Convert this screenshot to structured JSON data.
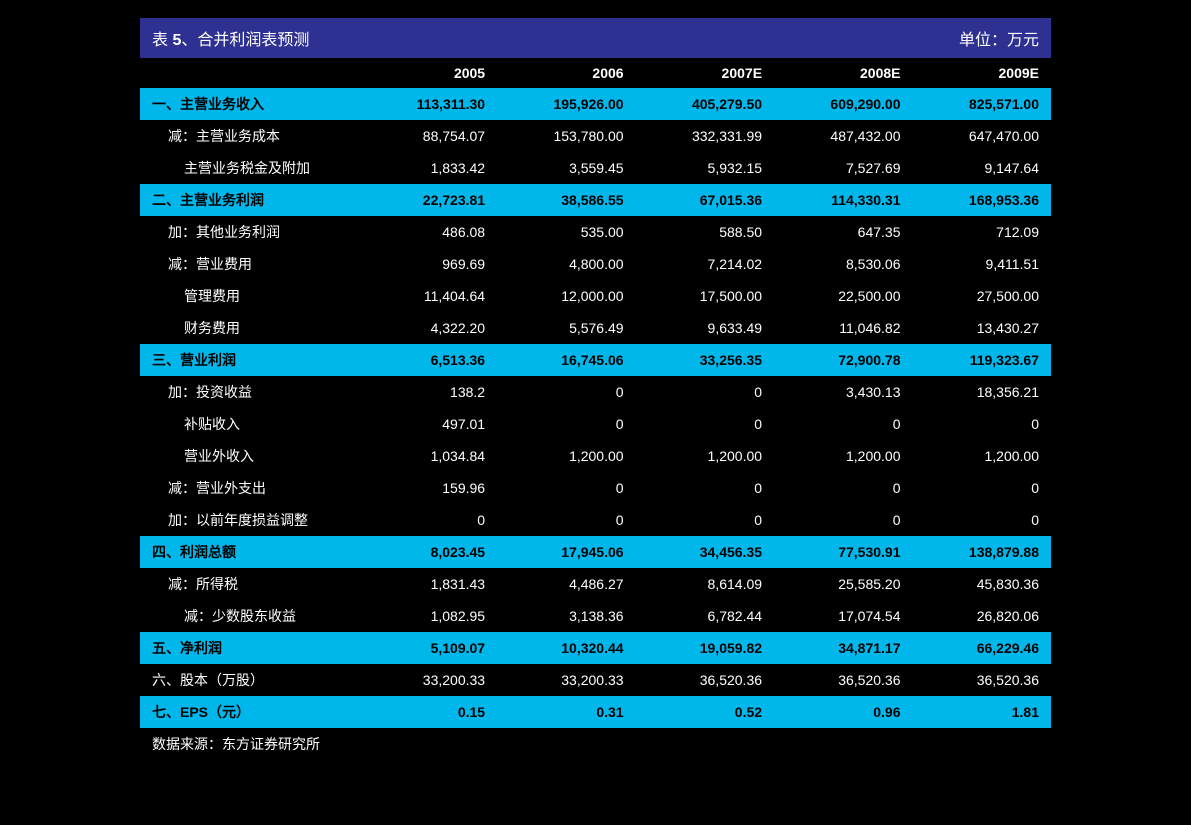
{
  "title": {
    "prefix": "表 ",
    "number": "5",
    "suffix": "、合并利润表预测",
    "unit": "单位：万元"
  },
  "colors": {
    "titleBg": "#2e3192",
    "highlightBg": "#00b7eb",
    "pageBg": "#000000",
    "textLight": "#ffffff",
    "textDark": "#000000"
  },
  "columns": [
    "2005",
    "2006",
    "2007E",
    "2008E",
    "2009E"
  ],
  "rows": [
    {
      "type": "highlight",
      "label": "一、主营业务收入",
      "values": [
        "113,311.30",
        "195,926.00",
        "405,279.50",
        "609,290.00",
        "825,571.00"
      ]
    },
    {
      "type": "normal",
      "indent": 1,
      "label": "减：主营业务成本",
      "values": [
        "88,754.07",
        "153,780.00",
        "332,331.99",
        "487,432.00",
        "647,470.00"
      ]
    },
    {
      "type": "normal",
      "indent": 2,
      "label": "主营业务税金及附加",
      "values": [
        "1,833.42",
        "3,559.45",
        "5,932.15",
        "7,527.69",
        "9,147.64"
      ]
    },
    {
      "type": "highlight",
      "label": "二、主营业务利润",
      "values": [
        "22,723.81",
        "38,586.55",
        "67,015.36",
        "114,330.31",
        "168,953.36"
      ]
    },
    {
      "type": "normal",
      "indent": 1,
      "label": "加：其他业务利润",
      "values": [
        "486.08",
        "535.00",
        "588.50",
        "647.35",
        "712.09"
      ]
    },
    {
      "type": "normal",
      "indent": 1,
      "label": "减：营业费用",
      "values": [
        "969.69",
        "4,800.00",
        "7,214.02",
        "8,530.06",
        "9,411.51"
      ]
    },
    {
      "type": "normal",
      "indent": 2,
      "label": "管理费用",
      "values": [
        "11,404.64",
        "12,000.00",
        "17,500.00",
        "22,500.00",
        "27,500.00"
      ]
    },
    {
      "type": "normal",
      "indent": 2,
      "label": "财务费用",
      "values": [
        "4,322.20",
        "5,576.49",
        "9,633.49",
        "11,046.82",
        "13,430.27"
      ]
    },
    {
      "type": "highlight",
      "label": "三、营业利润",
      "values": [
        "6,513.36",
        "16,745.06",
        "33,256.35",
        "72,900.78",
        "119,323.67"
      ]
    },
    {
      "type": "normal",
      "indent": 1,
      "label": "加：投资收益",
      "values": [
        "138.2",
        "0",
        "0",
        "3,430.13",
        "18,356.21"
      ]
    },
    {
      "type": "normal",
      "indent": 2,
      "label": "补贴收入",
      "values": [
        "497.01",
        "0",
        "0",
        "0",
        "0"
      ]
    },
    {
      "type": "normal",
      "indent": 2,
      "label": "营业外收入",
      "values": [
        "1,034.84",
        "1,200.00",
        "1,200.00",
        "1,200.00",
        "1,200.00"
      ]
    },
    {
      "type": "normal",
      "indent": 1,
      "label": "减：营业外支出",
      "values": [
        "159.96",
        "0",
        "0",
        "0",
        "0"
      ]
    },
    {
      "type": "normal",
      "indent": 1,
      "label": "加：以前年度损益调整",
      "values": [
        "0",
        "0",
        "0",
        "0",
        "0"
      ]
    },
    {
      "type": "highlight",
      "label": "四、利润总额",
      "values": [
        "8,023.45",
        "17,945.06",
        "34,456.35",
        "77,530.91",
        "138,879.88"
      ]
    },
    {
      "type": "normal",
      "indent": 1,
      "label": "减：所得税",
      "values": [
        "1,831.43",
        "4,486.27",
        "8,614.09",
        "25,585.20",
        "45,830.36"
      ]
    },
    {
      "type": "normal",
      "indent": 2,
      "label": "减：少数股东收益",
      "values": [
        "1,082.95",
        "3,138.36",
        "6,782.44",
        "17,074.54",
        "26,820.06"
      ]
    },
    {
      "type": "highlight",
      "label": "五、净利润",
      "values": [
        "5,109.07",
        "10,320.44",
        "19,059.82",
        "34,871.17",
        "66,229.46"
      ]
    },
    {
      "type": "normal",
      "label": "六、股本（万股）",
      "values": [
        "33,200.33",
        "33,200.33",
        "36,520.36",
        "36,520.36",
        "36,520.36"
      ]
    },
    {
      "type": "highlight",
      "label": "七、EPS（元）",
      "values": [
        "0.15",
        "0.31",
        "0.52",
        "0.96",
        "1.81"
      ]
    },
    {
      "type": "normal",
      "label": "数据来源：东方证券研究所",
      "values": [
        "",
        "",
        "",
        "",
        ""
      ]
    }
  ]
}
